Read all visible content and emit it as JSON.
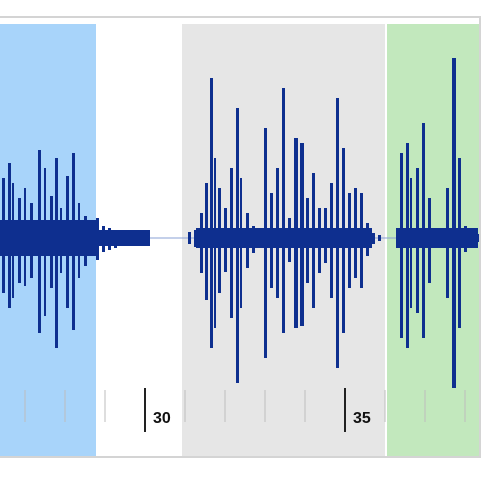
{
  "timeline": {
    "labels": [
      {
        "text": "30"
      },
      {
        "text": "35"
      }
    ]
  },
  "colors": {
    "waveform": "#0e2f8f",
    "selection_blue": "#a8d4fa",
    "selection_gray": "#e6e6e6",
    "selection_green": "#c2e8bd"
  },
  "icons": []
}
